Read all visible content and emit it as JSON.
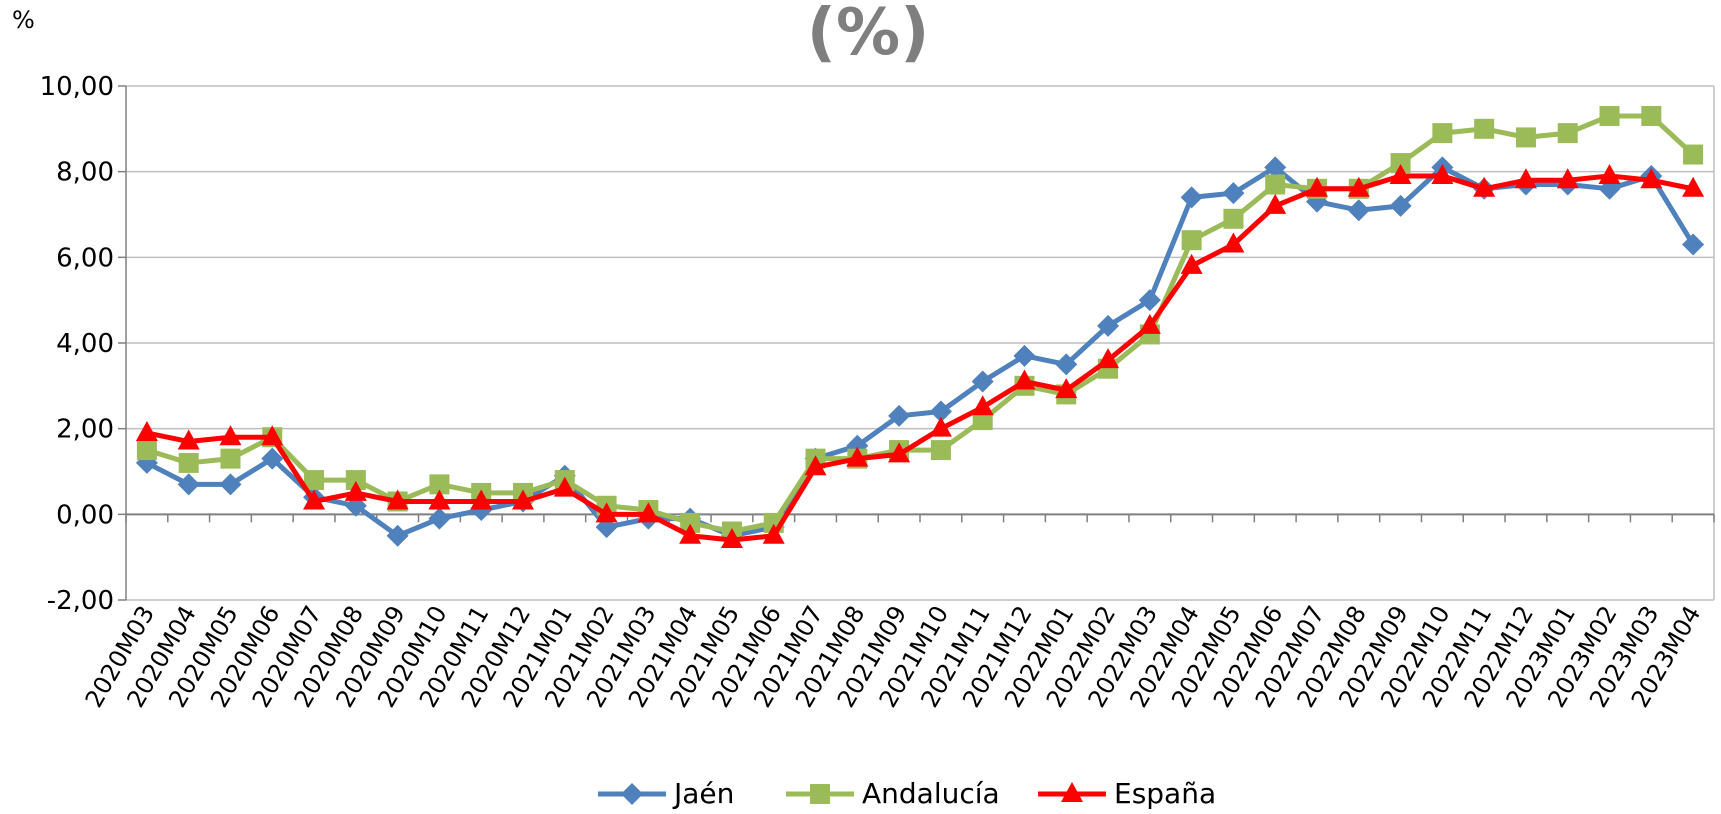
{
  "chart_data": {
    "type": "line",
    "title": "(%)",
    "ylabel": "%",
    "ylim": [
      -2,
      10
    ],
    "yticks": [
      -2,
      0,
      2,
      4,
      6,
      8,
      10
    ],
    "ytick_labels": [
      "-2,00",
      "0,00",
      "2,00",
      "4,00",
      "6,00",
      "8,00",
      "10,00"
    ],
    "grid": "horizontal",
    "legend_position": "bottom",
    "categories": [
      "2020M03",
      "2020M04",
      "2020M05",
      "2020M06",
      "2020M07",
      "2020M08",
      "2020M09",
      "2020M10",
      "2020M11",
      "2020M12",
      "2021M01",
      "2021M02",
      "2021M03",
      "2021M04",
      "2021M05",
      "2021M06",
      "2021M07",
      "2021M08",
      "2021M09",
      "2021M10",
      "2021M11",
      "2021M12",
      "2022M01",
      "2022M02",
      "2022M03",
      "2022M04",
      "2022M05",
      "2022M06",
      "2022M07",
      "2022M08",
      "2022M09",
      "2022M10",
      "2022M11",
      "2022M12",
      "2023M01",
      "2023M02",
      "2023M03",
      "2023M04"
    ],
    "series": [
      {
        "name": "Jaén",
        "color": "#4f81bd",
        "marker": "diamond",
        "values": [
          1.2,
          0.7,
          0.7,
          1.3,
          0.4,
          0.2,
          -0.5,
          -0.1,
          0.1,
          0.3,
          0.9,
          -0.3,
          -0.1,
          -0.1,
          -0.5,
          -0.3,
          1.3,
          1.6,
          2.3,
          2.4,
          3.1,
          3.7,
          3.5,
          4.4,
          5.0,
          7.4,
          7.5,
          8.1,
          7.3,
          7.1,
          7.2,
          8.1,
          7.6,
          7.7,
          7.7,
          7.6,
          7.9,
          6.3
        ]
      },
      {
        "name": "Andalucía",
        "color": "#9bbb59",
        "marker": "square",
        "values": [
          1.5,
          1.2,
          1.3,
          1.8,
          0.8,
          0.8,
          0.3,
          0.7,
          0.5,
          0.5,
          0.8,
          0.2,
          0.1,
          -0.2,
          -0.4,
          -0.2,
          1.3,
          1.3,
          1.5,
          1.5,
          2.2,
          3.0,
          2.8,
          3.4,
          4.2,
          6.4,
          6.9,
          7.7,
          7.6,
          7.6,
          8.2,
          8.9,
          9.0,
          8.8,
          8.9,
          9.3,
          9.3,
          8.4
        ]
      },
      {
        "name": "España",
        "color": "#ff0000",
        "marker": "triangle",
        "values": [
          1.9,
          1.7,
          1.8,
          1.8,
          0.3,
          0.5,
          0.3,
          0.3,
          0.3,
          0.3,
          0.6,
          0.0,
          0.0,
          -0.5,
          -0.6,
          -0.5,
          1.1,
          1.3,
          1.4,
          2.0,
          2.5,
          3.1,
          2.9,
          3.6,
          4.4,
          5.8,
          6.3,
          7.2,
          7.6,
          7.6,
          7.9,
          7.9,
          7.6,
          7.8,
          7.8,
          7.9,
          7.8,
          7.6
        ]
      }
    ]
  }
}
